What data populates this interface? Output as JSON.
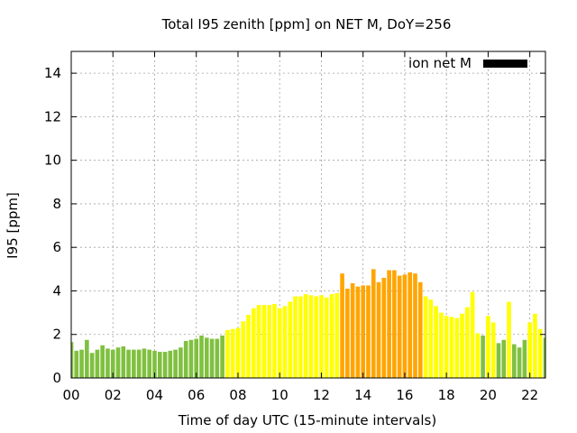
{
  "chart_data": {
    "type": "bar",
    "title": "Total I95 zenith [ppm] on NET M, DoY=256",
    "xlabel": "Time of day UTC (15-minute intervals)",
    "ylabel": "I95 [ppm]",
    "xlim": [
      0,
      22.75
    ],
    "ylim": [
      0,
      15
    ],
    "grid": true,
    "legend_position": "top-right",
    "x_ticks": [
      {
        "value": 0,
        "label": "00"
      },
      {
        "value": 2,
        "label": "02"
      },
      {
        "value": 4,
        "label": "04"
      },
      {
        "value": 6,
        "label": "06"
      },
      {
        "value": 8,
        "label": "08"
      },
      {
        "value": 10,
        "label": "10"
      },
      {
        "value": 12,
        "label": "12"
      },
      {
        "value": 14,
        "label": "14"
      },
      {
        "value": 16,
        "label": "16"
      },
      {
        "value": 18,
        "label": "18"
      },
      {
        "value": 20,
        "label": "20"
      },
      {
        "value": 22,
        "label": "22"
      }
    ],
    "y_ticks": [
      {
        "value": 0,
        "label": "0"
      },
      {
        "value": 2,
        "label": "2"
      },
      {
        "value": 4,
        "label": "4"
      },
      {
        "value": 6,
        "label": "6"
      },
      {
        "value": 8,
        "label": "8"
      },
      {
        "value": 10,
        "label": "10"
      },
      {
        "value": 12,
        "label": "12"
      },
      {
        "value": 14,
        "label": "14"
      }
    ],
    "legend": [
      {
        "label": "ion net M",
        "color": "#000000"
      }
    ],
    "colors": {
      "green": "#80c040",
      "yellow": "#ffff00",
      "orange": "#ffa500"
    },
    "interval_hours": 0.25,
    "series": [
      {
        "values": [
          1.65,
          1.25,
          1.3,
          1.75,
          1.15,
          1.3,
          1.5,
          1.35,
          1.3,
          1.4,
          1.45,
          1.3,
          1.3,
          1.3,
          1.35,
          1.3,
          1.25,
          1.2,
          1.2,
          1.25,
          1.3,
          1.4,
          1.7,
          1.75,
          1.8,
          1.95,
          1.85,
          1.8,
          1.8,
          1.95,
          2.2,
          2.25,
          2.3,
          2.6,
          2.9,
          3.2,
          3.35,
          3.35,
          3.35,
          3.4,
          3.2,
          3.3,
          3.5,
          3.75,
          3.75,
          3.85,
          3.8,
          3.75,
          3.8,
          3.7,
          3.85,
          3.9,
          4.8,
          4.1,
          4.35,
          4.2,
          4.25,
          4.25,
          5.0,
          4.4,
          4.6,
          4.95,
          4.95,
          4.7,
          4.75,
          4.85,
          4.8,
          4.4,
          3.75,
          3.6,
          3.3,
          3.0,
          2.85,
          2.8,
          2.75,
          2.95,
          3.25,
          3.95,
          2.05,
          1.95,
          2.85,
          2.55,
          1.6,
          1.75,
          3.5,
          1.55,
          1.4,
          1.75,
          2.55,
          2.95,
          2.25,
          1.85
        ],
        "categories": [
          "green",
          "green",
          "green",
          "green",
          "green",
          "green",
          "green",
          "green",
          "green",
          "green",
          "green",
          "green",
          "green",
          "green",
          "green",
          "green",
          "green",
          "green",
          "green",
          "green",
          "green",
          "green",
          "green",
          "green",
          "green",
          "green",
          "green",
          "green",
          "green",
          "green",
          "yellow",
          "yellow",
          "yellow",
          "yellow",
          "yellow",
          "yellow",
          "yellow",
          "yellow",
          "yellow",
          "yellow",
          "yellow",
          "yellow",
          "yellow",
          "yellow",
          "yellow",
          "yellow",
          "yellow",
          "yellow",
          "yellow",
          "yellow",
          "yellow",
          "yellow",
          "orange",
          "orange",
          "orange",
          "orange",
          "orange",
          "orange",
          "orange",
          "orange",
          "orange",
          "orange",
          "orange",
          "orange",
          "orange",
          "orange",
          "orange",
          "orange",
          "yellow",
          "yellow",
          "yellow",
          "yellow",
          "yellow",
          "yellow",
          "yellow",
          "yellow",
          "yellow",
          "yellow",
          "yellow",
          "green",
          "yellow",
          "yellow",
          "green",
          "green",
          "yellow",
          "green",
          "green",
          "green",
          "yellow",
          "yellow",
          "yellow",
          "green"
        ]
      }
    ]
  }
}
